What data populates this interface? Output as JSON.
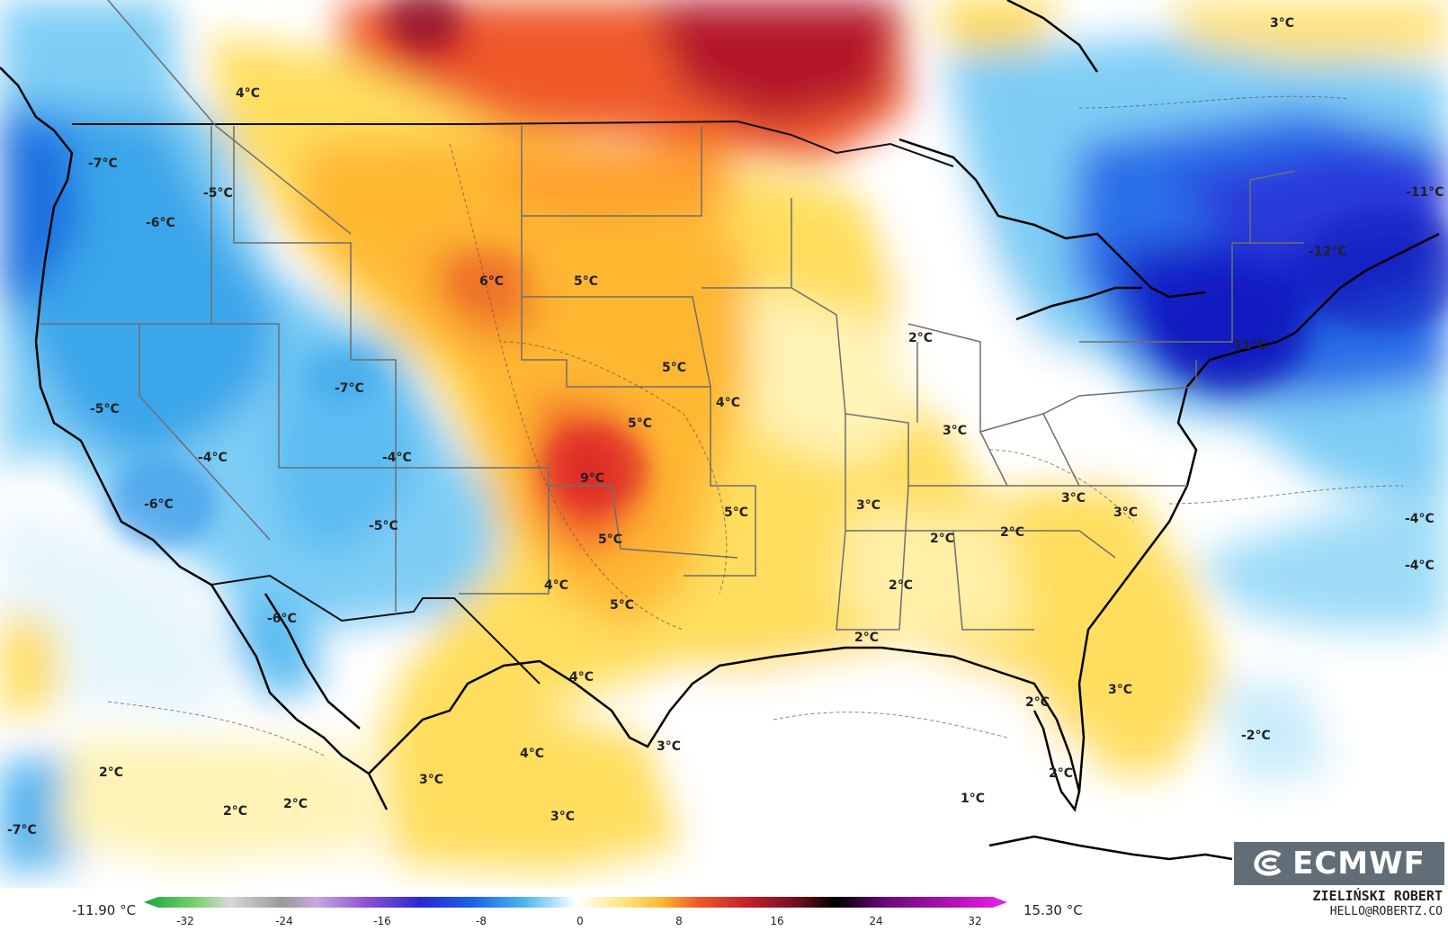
{
  "map": {
    "labels": [
      {
        "text": "4°C"
      },
      {
        "text": "3°C"
      },
      {
        "text": "-7°C"
      },
      {
        "text": "-5°C"
      },
      {
        "text": "-6°C"
      },
      {
        "text": "6°C"
      },
      {
        "text": "5°C"
      },
      {
        "text": "-11°C"
      },
      {
        "text": "-12°C"
      },
      {
        "text": "-11°C"
      },
      {
        "text": "2°C"
      },
      {
        "text": "-7°C"
      },
      {
        "text": "5°C"
      },
      {
        "text": "4°C"
      },
      {
        "text": "-5°C"
      },
      {
        "text": "5°C"
      },
      {
        "text": "3°C"
      },
      {
        "text": "-4°C"
      },
      {
        "text": "-4°C"
      },
      {
        "text": "9°C"
      },
      {
        "text": "-6°C"
      },
      {
        "text": "-5°C"
      },
      {
        "text": "5°C"
      },
      {
        "text": "3°C"
      },
      {
        "text": "3°C"
      },
      {
        "text": "3°C"
      },
      {
        "text": "5°C"
      },
      {
        "text": "2°C"
      },
      {
        "text": "2°C"
      },
      {
        "text": "-4°C"
      },
      {
        "text": "-4°C"
      },
      {
        "text": "4°C"
      },
      {
        "text": "2°C"
      },
      {
        "text": "5°C"
      },
      {
        "text": "-6°C"
      },
      {
        "text": "2°C"
      },
      {
        "text": "4°C"
      },
      {
        "text": "3°C"
      },
      {
        "text": "2°C"
      },
      {
        "text": "-2°C"
      },
      {
        "text": "3°C"
      },
      {
        "text": "4°C"
      },
      {
        "text": "2°C"
      },
      {
        "text": "3°C"
      },
      {
        "text": "2°C"
      },
      {
        "text": "1°C"
      },
      {
        "text": "2°C"
      },
      {
        "text": "3°C"
      },
      {
        "text": "-7°C"
      },
      {
        "text": "2°C"
      }
    ]
  },
  "legend": {
    "min_label": "-11.90 °C",
    "max_label": "15.30 °C",
    "ticks": [
      "-32",
      "-24",
      "-16",
      "-8",
      "0",
      "8",
      "16",
      "24",
      "32"
    ]
  },
  "credit": {
    "name": "ZIELIŃSKI ROBERT",
    "email": "HELLO@ROBERTZ.CO"
  },
  "brand": {
    "name": "ECMWF"
  }
}
